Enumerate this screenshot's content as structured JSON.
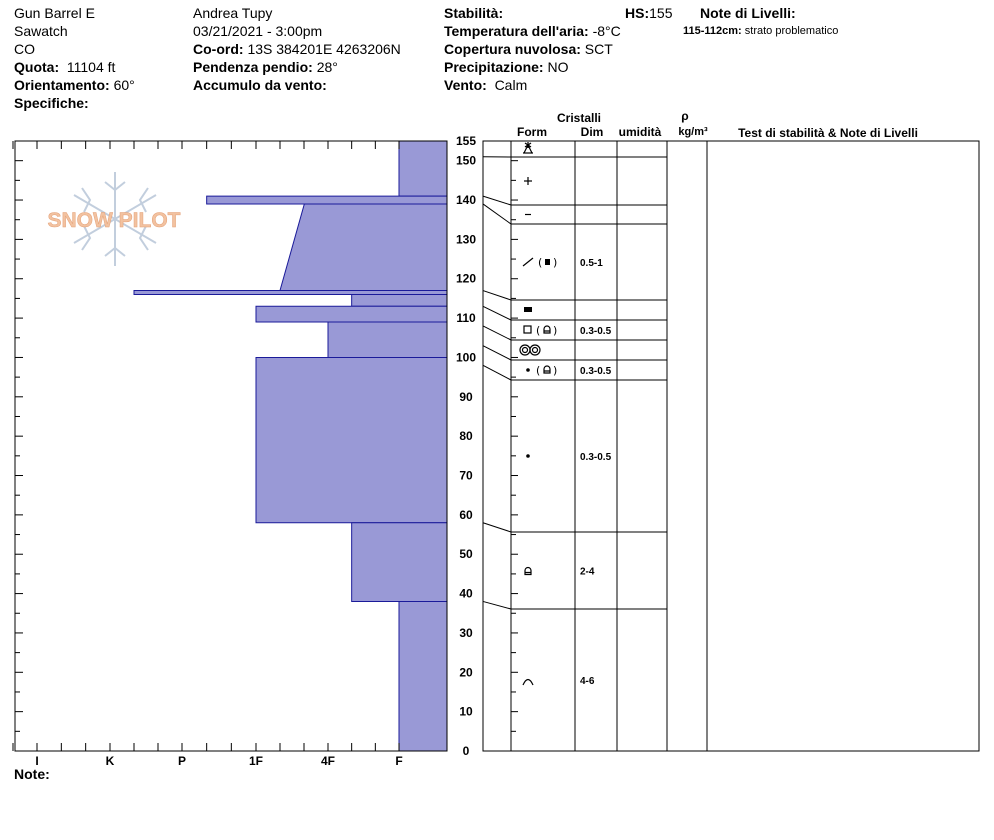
{
  "header": {
    "location": "Gun Barrel E",
    "range": "Sawatch",
    "state": "CO",
    "elevation_label": "Quota:",
    "elevation_value": "11104 ft",
    "aspect_label": "Orientamento:",
    "aspect_value": "60°",
    "specifics_label": "Specifiche:",
    "observer": "Andrea Tupy",
    "datetime": "03/21/2021 - 3:00pm",
    "coord_label": "Co-ord:",
    "coord_value": "13S 384201E 4263206N",
    "slope_label": "Pendenza pendio:",
    "slope_value": "28°",
    "wind_load_label": "Accumulo da vento:",
    "stability_label": "Stabilità:",
    "air_temp_label": "Temperatura dell'aria:",
    "air_temp_value": "-8°C",
    "cloud_label": "Copertura nuvolosa:",
    "cloud_value": "SCT",
    "precip_label": "Precipitazione:",
    "precip_value": "NO",
    "wind_label": "Vento:",
    "wind_value": "Calm",
    "hs_label": "HS:",
    "hs_value": "155",
    "layer_notes_label": "Note di Livelli:",
    "layer_note_range": "115-112cm:",
    "layer_note_text": "strato problematico"
  },
  "columns": {
    "crystals": "Cristalli",
    "form": "Form",
    "size": "Dim",
    "moisture": "umidità",
    "rho": "ρ",
    "density_unit": "kg/m³",
    "stability_notes": "Test di stabilità & Note di Livelli"
  },
  "footer": {
    "notes_label": "Note:"
  },
  "watermark": "SNOW PILOT",
  "colors": {
    "hardness_fill": "#9999d6",
    "hardness_stroke": "#1a1a99",
    "watermark": "#f0b890"
  },
  "chart_data": {
    "type": "snow-profile",
    "y_axis": {
      "ylim": [
        0,
        155
      ],
      "ticks": [
        0,
        10,
        20,
        30,
        40,
        50,
        60,
        70,
        80,
        90,
        100,
        110,
        120,
        130,
        140,
        150,
        155
      ]
    },
    "hardness_scale": [
      "I",
      "K",
      "P",
      "1F",
      "4F",
      "F"
    ],
    "hardness_profile": [
      {
        "top": 155,
        "bottom": 141,
        "top_hardness": "F",
        "bottom_hardness": "F"
      },
      {
        "top": 141,
        "bottom": 139,
        "top_hardness": "P+",
        "bottom_hardness": "P+"
      },
      {
        "top": 139,
        "bottom": 117,
        "top_hardness": "4F-",
        "bottom_hardness": "1F+"
      },
      {
        "top": 117,
        "bottom": 116,
        "top_hardness": "K+",
        "bottom_hardness": "K+"
      },
      {
        "top": 116,
        "bottom": 113,
        "top_hardness": "4F+",
        "bottom_hardness": "4F+"
      },
      {
        "top": 113,
        "bottom": 109,
        "top_hardness": "1F",
        "bottom_hardness": "1F"
      },
      {
        "top": 109,
        "bottom": 100,
        "top_hardness": "4F",
        "bottom_hardness": "4F"
      },
      {
        "top": 100,
        "bottom": 58,
        "top_hardness": "1F",
        "bottom_hardness": "1F"
      },
      {
        "top": 58,
        "bottom": 38,
        "top_hardness": "4F+",
        "bottom_hardness": "4F+"
      },
      {
        "top": 38,
        "bottom": 0,
        "top_hardness": "F",
        "bottom_hardness": "F"
      }
    ],
    "layers": [
      {
        "top": 155,
        "bottom": 151,
        "form": "PP",
        "size": ""
      },
      {
        "top": 151,
        "bottom": 141,
        "form": "DF",
        "size": ""
      },
      {
        "top": 141,
        "bottom": 139,
        "form": "DF-",
        "size": ""
      },
      {
        "top": 139,
        "bottom": 117,
        "form": "FC/MF",
        "size": "0.5-1"
      },
      {
        "top": 117,
        "bottom": 113,
        "form": "MFcr",
        "size": ""
      },
      {
        "top": 113,
        "bottom": 108,
        "form": "FC(DH)",
        "size": "0.3-0.5"
      },
      {
        "top": 108,
        "bottom": 103,
        "form": "MF",
        "size": ""
      },
      {
        "top": 103,
        "bottom": 98,
        "form": "RG(DH)",
        "size": "0.3-0.5"
      },
      {
        "top": 98,
        "bottom": 58,
        "form": "RG",
        "size": "0.3-0.5"
      },
      {
        "top": 58,
        "bottom": 38,
        "form": "DH",
        "size": "2-4"
      },
      {
        "top": 38,
        "bottom": 0,
        "form": "DH-chevron",
        "size": "4-6"
      }
    ]
  }
}
